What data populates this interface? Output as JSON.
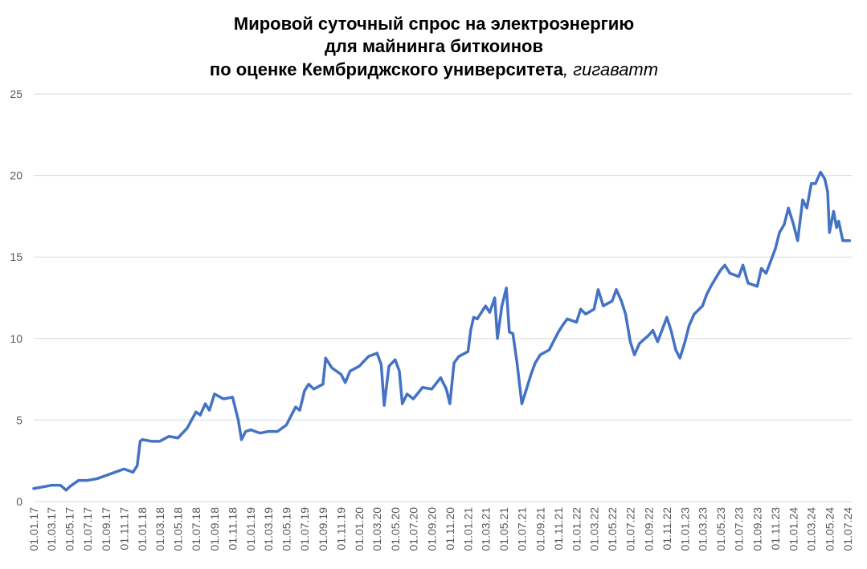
{
  "chart_data": {
    "type": "line",
    "title": [
      "Мировой суточный спрос на электроэнергию",
      "для майнинга биткоинов",
      "по оценке Кембриджского университета"
    ],
    "title_unit": ", гигаватт",
    "color": "#4472c4",
    "grid": true,
    "ylim": [
      0,
      25
    ],
    "yticks": [
      0,
      5,
      10,
      15,
      20,
      25
    ],
    "xlim": [
      "01.01.17",
      "15.07.24"
    ],
    "xticks": [
      "01.01.17",
      "01.03.17",
      "01.05.17",
      "01.07.17",
      "01.09.17",
      "01.11.17",
      "01.01.18",
      "01.03.18",
      "01.05.18",
      "01.07.18",
      "01.09.18",
      "01.11.18",
      "01.01.19",
      "01.03.19",
      "01.05.19",
      "01.07.19",
      "01.09.19",
      "01.11.19",
      "01.01.20",
      "01.03.20",
      "01.05.20",
      "01.07.20",
      "01.09.20",
      "01.11.20",
      "01.01.21",
      "01.03.21",
      "01.05.21",
      "01.07.21",
      "01.09.21",
      "01.11.21",
      "01.01.22",
      "01.03.22",
      "01.05.22",
      "01.07.22",
      "01.09.22",
      "01.11.22",
      "01.01.23",
      "01.03.23",
      "01.05.23",
      "01.07.23",
      "01.09.23",
      "01.11.23",
      "01.01.24",
      "01.03.24",
      "01.05.24",
      "01.07.24"
    ],
    "x": [
      "01.01.17",
      "01.02.17",
      "01.03.17",
      "01.04.17",
      "20.04.17",
      "01.05.17",
      "01.06.17",
      "01.07.17",
      "01.08.17",
      "01.09.17",
      "01.10.17",
      "01.11.17",
      "01.12.17",
      "15.12.17",
      "25.12.17",
      "01.01.18",
      "01.02.18",
      "01.03.18",
      "01.04.18",
      "01.05.18",
      "01.06.18",
      "01.07.18",
      "15.07.18",
      "01.08.18",
      "15.08.18",
      "01.09.18",
      "01.10.18",
      "01.11.18",
      "20.11.18",
      "01.12.18",
      "15.12.18",
      "01.01.19",
      "01.02.19",
      "01.03.19",
      "01.04.19",
      "01.05.19",
      "01.06.19",
      "15.06.19",
      "01.07.19",
      "15.07.19",
      "01.08.19",
      "01.09.19",
      "10.09.19",
      "01.10.19",
      "01.11.19",
      "15.11.19",
      "01.12.19",
      "01.01.20",
      "01.02.20",
      "01.03.20",
      "15.03.20",
      "25.03.20",
      "10.04.20",
      "01.05.20",
      "15.05.20",
      "25.05.20",
      "10.06.20",
      "01.07.20",
      "01.08.20",
      "01.09.20",
      "01.10.20",
      "20.10.20",
      "01.11.20",
      "15.11.20",
      "01.12.20",
      "01.01.21",
      "10.01.21",
      "20.01.21",
      "01.02.21",
      "01.03.21",
      "15.03.21",
      "01.04.21",
      "10.04.21",
      "25.04.21",
      "10.05.21",
      "20.05.21",
      "01.06.21",
      "15.06.21",
      "01.07.21",
      "15.07.21",
      "01.08.21",
      "15.08.21",
      "01.09.21",
      "01.10.21",
      "01.11.21",
      "15.11.21",
      "01.12.21",
      "01.01.22",
      "15.01.22",
      "01.02.22",
      "01.03.22",
      "15.03.22",
      "01.04.22",
      "01.05.22",
      "15.05.22",
      "01.06.22",
      "15.06.22",
      "01.07.22",
      "15.07.22",
      "01.08.22",
      "01.09.22",
      "15.09.22",
      "01.10.22",
      "01.11.22",
      "15.11.22",
      "01.12.22",
      "15.12.22",
      "01.01.23",
      "15.01.23",
      "01.02.23",
      "01.03.23",
      "15.03.23",
      "01.04.23",
      "01.05.23",
      "15.05.23",
      "01.06.23",
      "01.07.23",
      "15.07.23",
      "01.08.23",
      "01.09.23",
      "15.09.23",
      "01.10.23",
      "01.11.23",
      "15.11.23",
      "01.12.23",
      "15.12.23",
      "01.01.24",
      "15.01.24",
      "01.02.24",
      "15.02.24",
      "01.03.24",
      "15.03.24",
      "01.04.24",
      "15.04.24",
      "25.04.24",
      "01.05.24",
      "15.05.24",
      "25.05.24",
      "01.06.24",
      "15.06.24",
      "01.07.24",
      "08.07.24"
    ],
    "values": [
      0.8,
      0.9,
      1.0,
      1.0,
      0.7,
      0.9,
      1.3,
      1.3,
      1.4,
      1.6,
      1.8,
      2.0,
      1.8,
      2.2,
      3.7,
      3.8,
      3.7,
      3.7,
      4.0,
      3.9,
      4.5,
      5.5,
      5.3,
      6.0,
      5.6,
      6.6,
      6.3,
      6.4,
      5.0,
      3.8,
      4.3,
      4.4,
      4.2,
      4.3,
      4.3,
      4.7,
      5.8,
      5.6,
      6.8,
      7.2,
      6.9,
      7.2,
      8.8,
      8.2,
      7.8,
      7.3,
      8.0,
      8.3,
      8.9,
      9.1,
      8.4,
      5.9,
      8.3,
      8.7,
      8.0,
      6.0,
      6.6,
      6.3,
      7.0,
      6.9,
      7.6,
      6.9,
      6.0,
      8.5,
      8.9,
      9.2,
      10.5,
      11.3,
      11.2,
      12.0,
      11.6,
      12.5,
      10.0,
      12.0,
      13.1,
      10.4,
      10.3,
      8.5,
      6.0,
      6.8,
      7.8,
      8.5,
      9.0,
      9.3,
      10.4,
      10.8,
      11.2,
      11.0,
      11.8,
      11.5,
      11.8,
      13.0,
      12.0,
      12.3,
      13.0,
      12.3,
      11.5,
      9.8,
      9.0,
      9.7,
      10.2,
      10.5,
      9.8,
      11.3,
      10.5,
      9.3,
      8.8,
      9.8,
      10.8,
      11.5,
      12.0,
      12.7,
      13.3,
      14.2,
      14.5,
      14.0,
      13.8,
      14.5,
      13.4,
      13.2,
      14.3,
      14.0,
      15.5,
      16.5,
      17.0,
      18.0,
      17.0,
      16.0,
      18.5,
      18.0,
      19.5,
      19.5,
      20.2,
      19.8,
      19.0,
      16.5,
      17.8,
      16.8,
      17.2,
      16.0,
      16.0,
      16.0
    ]
  }
}
